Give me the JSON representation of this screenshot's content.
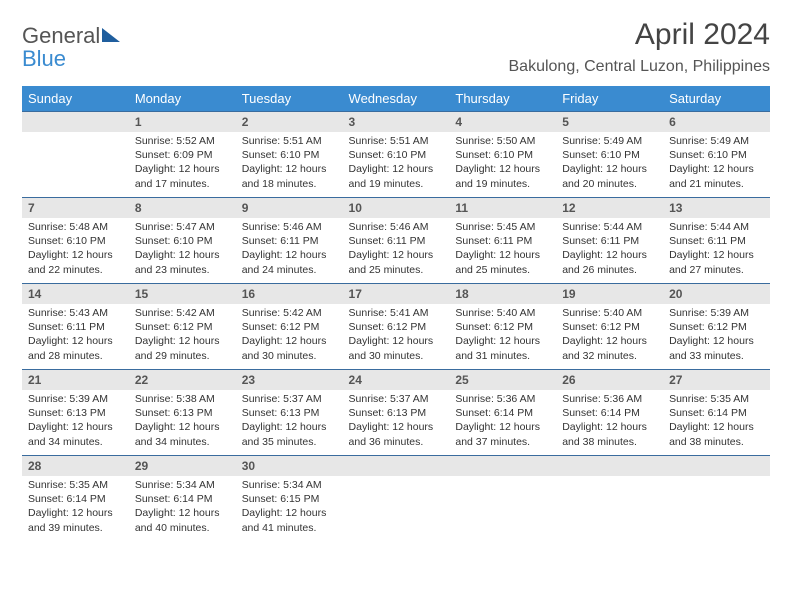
{
  "logo": {
    "word1": "General",
    "word2": "Blue"
  },
  "title": "April 2024",
  "location": "Bakulong, Central Luzon, Philippines",
  "colors": {
    "header_bg": "#3a8bd0",
    "header_text": "#ffffff",
    "row_border": "#3a6c9e",
    "daynum_bg": "#e7e7e7",
    "logo_general": "#555555",
    "logo_blue": "#3a8bd0",
    "triangle": "#1f5e9e",
    "page_bg": "#ffffff"
  },
  "typography": {
    "title_fontsize": 30,
    "location_fontsize": 16,
    "dayhead_fontsize": 13,
    "cell_fontsize": 10.5
  },
  "weekdays": [
    "Sunday",
    "Monday",
    "Tuesday",
    "Wednesday",
    "Thursday",
    "Friday",
    "Saturday"
  ],
  "grid": {
    "rows": 5,
    "cols": 7
  },
  "leading_blanks": 1,
  "days": [
    {
      "n": 1,
      "sr": "5:52 AM",
      "ss": "6:09 PM",
      "dl": "12 hours and 17 minutes."
    },
    {
      "n": 2,
      "sr": "5:51 AM",
      "ss": "6:10 PM",
      "dl": "12 hours and 18 minutes."
    },
    {
      "n": 3,
      "sr": "5:51 AM",
      "ss": "6:10 PM",
      "dl": "12 hours and 19 minutes."
    },
    {
      "n": 4,
      "sr": "5:50 AM",
      "ss": "6:10 PM",
      "dl": "12 hours and 19 minutes."
    },
    {
      "n": 5,
      "sr": "5:49 AM",
      "ss": "6:10 PM",
      "dl": "12 hours and 20 minutes."
    },
    {
      "n": 6,
      "sr": "5:49 AM",
      "ss": "6:10 PM",
      "dl": "12 hours and 21 minutes."
    },
    {
      "n": 7,
      "sr": "5:48 AM",
      "ss": "6:10 PM",
      "dl": "12 hours and 22 minutes."
    },
    {
      "n": 8,
      "sr": "5:47 AM",
      "ss": "6:10 PM",
      "dl": "12 hours and 23 minutes."
    },
    {
      "n": 9,
      "sr": "5:46 AM",
      "ss": "6:11 PM",
      "dl": "12 hours and 24 minutes."
    },
    {
      "n": 10,
      "sr": "5:46 AM",
      "ss": "6:11 PM",
      "dl": "12 hours and 25 minutes."
    },
    {
      "n": 11,
      "sr": "5:45 AM",
      "ss": "6:11 PM",
      "dl": "12 hours and 25 minutes."
    },
    {
      "n": 12,
      "sr": "5:44 AM",
      "ss": "6:11 PM",
      "dl": "12 hours and 26 minutes."
    },
    {
      "n": 13,
      "sr": "5:44 AM",
      "ss": "6:11 PM",
      "dl": "12 hours and 27 minutes."
    },
    {
      "n": 14,
      "sr": "5:43 AM",
      "ss": "6:11 PM",
      "dl": "12 hours and 28 minutes."
    },
    {
      "n": 15,
      "sr": "5:42 AM",
      "ss": "6:12 PM",
      "dl": "12 hours and 29 minutes."
    },
    {
      "n": 16,
      "sr": "5:42 AM",
      "ss": "6:12 PM",
      "dl": "12 hours and 30 minutes."
    },
    {
      "n": 17,
      "sr": "5:41 AM",
      "ss": "6:12 PM",
      "dl": "12 hours and 30 minutes."
    },
    {
      "n": 18,
      "sr": "5:40 AM",
      "ss": "6:12 PM",
      "dl": "12 hours and 31 minutes."
    },
    {
      "n": 19,
      "sr": "5:40 AM",
      "ss": "6:12 PM",
      "dl": "12 hours and 32 minutes."
    },
    {
      "n": 20,
      "sr": "5:39 AM",
      "ss": "6:12 PM",
      "dl": "12 hours and 33 minutes."
    },
    {
      "n": 21,
      "sr": "5:39 AM",
      "ss": "6:13 PM",
      "dl": "12 hours and 34 minutes."
    },
    {
      "n": 22,
      "sr": "5:38 AM",
      "ss": "6:13 PM",
      "dl": "12 hours and 34 minutes."
    },
    {
      "n": 23,
      "sr": "5:37 AM",
      "ss": "6:13 PM",
      "dl": "12 hours and 35 minutes."
    },
    {
      "n": 24,
      "sr": "5:37 AM",
      "ss": "6:13 PM",
      "dl": "12 hours and 36 minutes."
    },
    {
      "n": 25,
      "sr": "5:36 AM",
      "ss": "6:14 PM",
      "dl": "12 hours and 37 minutes."
    },
    {
      "n": 26,
      "sr": "5:36 AM",
      "ss": "6:14 PM",
      "dl": "12 hours and 38 minutes."
    },
    {
      "n": 27,
      "sr": "5:35 AM",
      "ss": "6:14 PM",
      "dl": "12 hours and 38 minutes."
    },
    {
      "n": 28,
      "sr": "5:35 AM",
      "ss": "6:14 PM",
      "dl": "12 hours and 39 minutes."
    },
    {
      "n": 29,
      "sr": "5:34 AM",
      "ss": "6:14 PM",
      "dl": "12 hours and 40 minutes."
    },
    {
      "n": 30,
      "sr": "5:34 AM",
      "ss": "6:15 PM",
      "dl": "12 hours and 41 minutes."
    }
  ],
  "labels": {
    "sunrise": "Sunrise:",
    "sunset": "Sunset:",
    "daylight": "Daylight:"
  }
}
